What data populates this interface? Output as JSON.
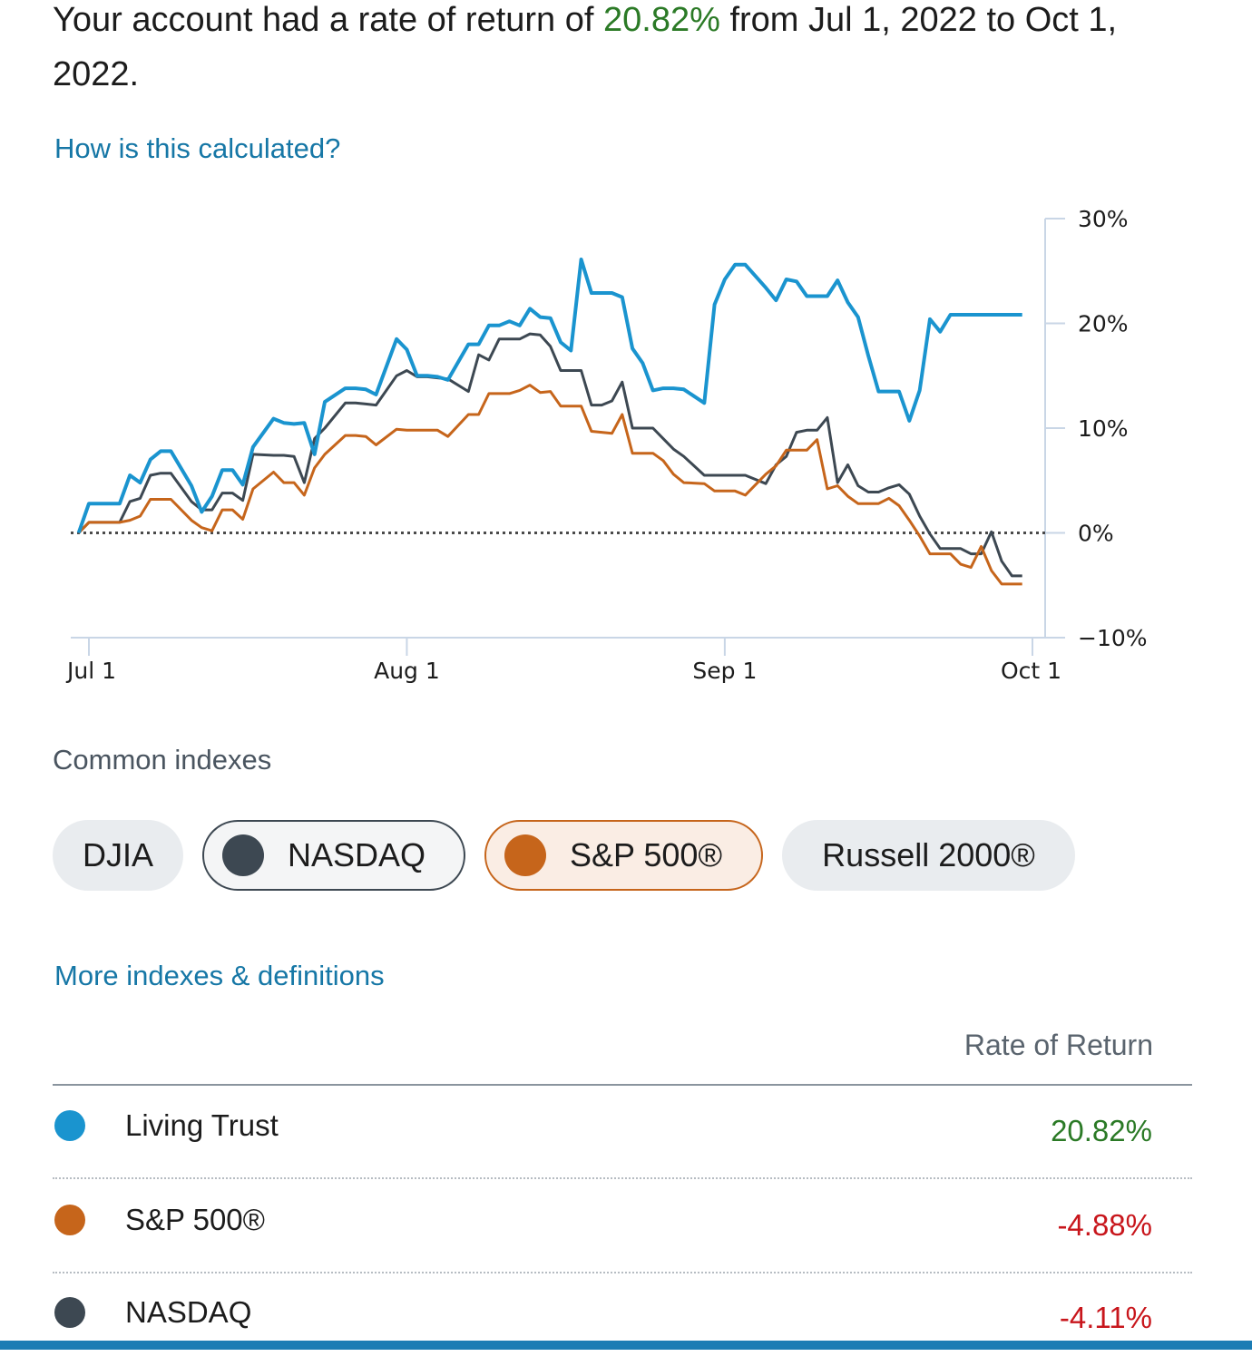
{
  "headline": {
    "prefix": "Your account had a rate of return of ",
    "rate": "20.82%",
    "suffix": " from Jul 1, 2022 to Oct 1, 2022."
  },
  "links": {
    "how_calculated": "How is this calculated?",
    "more_indexes": "More indexes & definitions"
  },
  "indexes": {
    "label": "Common indexes",
    "chips": [
      {
        "label": "DJIA",
        "selected": false
      },
      {
        "label": "NASDAQ",
        "selected": true,
        "color": "#3d4852"
      },
      {
        "label": "S&P 500®",
        "selected": true,
        "color": "#c6651b"
      },
      {
        "label": "Russell 2000®",
        "selected": false
      }
    ]
  },
  "table": {
    "header": "Rate of Return",
    "rows": [
      {
        "name": "Living Trust",
        "value": "20.82%",
        "color": "#1a94cf",
        "positive": true
      },
      {
        "name": "S&P 500®",
        "value": "-4.88%",
        "color": "#c6651b",
        "positive": false
      },
      {
        "name": "NASDAQ",
        "value": "-4.11%",
        "color": "#3d4852",
        "positive": false
      }
    ]
  },
  "chart_data": {
    "type": "line",
    "title": "",
    "xlabel": "",
    "ylabel": "",
    "ylim": [
      -10,
      30
    ],
    "xlim": [
      0,
      92
    ],
    "x_ticks": [
      {
        "label": "Jul 1",
        "day": 0
      },
      {
        "label": "Aug 1",
        "day": 31
      },
      {
        "label": "Sep 1",
        "day": 62
      },
      {
        "label": "Oct 1",
        "day": 92
      }
    ],
    "y_ticks": [
      {
        "label": "30%",
        "value": 30
      },
      {
        "label": "20%",
        "value": 20
      },
      {
        "label": "10%",
        "value": 10
      },
      {
        "label": "0%",
        "value": 0
      },
      {
        "label": "−10%",
        "value": -10
      }
    ],
    "zero_line": "dotted",
    "series": [
      {
        "name": "NASDAQ",
        "color": "#3d4852",
        "x": [
          -1,
          0,
          3,
          4,
          5,
          6,
          7,
          8,
          10,
          11,
          12,
          13,
          14,
          15,
          16,
          18,
          19,
          20,
          21,
          22,
          23,
          25,
          26,
          27,
          28,
          30,
          31,
          32,
          33,
          34,
          35,
          37,
          38,
          39,
          40,
          41,
          42,
          43,
          44,
          45,
          46,
          47,
          48,
          49,
          50,
          51,
          52,
          53,
          54,
          55,
          56,
          57,
          58,
          60,
          61,
          62,
          63,
          64,
          66,
          67,
          68,
          69,
          70,
          71,
          72,
          73,
          74,
          75,
          76,
          77,
          78,
          79,
          80,
          81,
          82,
          83,
          84,
          85,
          86,
          87,
          88,
          89,
          90,
          91
        ],
        "y": [
          0,
          1,
          1,
          3,
          3.3,
          5.5,
          5.7,
          5.7,
          3,
          2.2,
          2.2,
          3.8,
          3.8,
          3.1,
          7.5,
          7.4,
          7.4,
          7.3,
          4.8,
          9,
          10,
          12.4,
          12.4,
          12.3,
          12.2,
          15,
          15.5,
          14.9,
          14.9,
          14.8,
          14.7,
          13.5,
          17,
          16.5,
          18.5,
          18.5,
          18.5,
          19,
          18.9,
          17.8,
          15.5,
          15.5,
          15.5,
          12.2,
          12.2,
          12.6,
          14.4,
          10,
          10,
          10,
          9,
          8,
          7.3,
          5.5,
          5.5,
          5.5,
          5.5,
          5.5,
          4.7,
          6.5,
          7.3,
          9.6,
          9.8,
          9.8,
          11,
          4.8,
          6.5,
          4.5,
          3.9,
          3.9,
          4.3,
          4.6,
          3.7,
          1.6,
          -0.1,
          -1.5,
          -1.5,
          -1.5,
          -2,
          -2,
          0.1,
          -2.7,
          -4.1,
          -4.1
        ]
      },
      {
        "name": "S&P 500®",
        "color": "#c6651b",
        "x": [
          -1,
          0,
          3,
          4,
          5,
          6,
          7,
          8,
          10,
          11,
          12,
          13,
          14,
          15,
          16,
          18,
          19,
          20,
          21,
          22,
          23,
          25,
          26,
          27,
          28,
          30,
          31,
          32,
          33,
          34,
          35,
          37,
          38,
          39,
          40,
          41,
          42,
          43,
          44,
          45,
          46,
          47,
          48,
          49,
          50,
          51,
          52,
          53,
          54,
          55,
          56,
          57,
          58,
          60,
          61,
          62,
          63,
          64,
          66,
          67,
          68,
          69,
          70,
          71,
          72,
          73,
          74,
          75,
          76,
          77,
          78,
          79,
          80,
          81,
          82,
          83,
          84,
          85,
          86,
          87,
          88,
          89,
          90,
          91
        ],
        "y": [
          0,
          1,
          1,
          1.2,
          1.6,
          3.2,
          3.2,
          3.2,
          1.2,
          0.5,
          0.2,
          2.2,
          2.2,
          1.3,
          4.2,
          5.8,
          4.8,
          4.8,
          3.6,
          6.2,
          7.5,
          9.3,
          9.3,
          9.2,
          8.4,
          9.9,
          9.8,
          9.8,
          9.8,
          9.8,
          9.2,
          11.3,
          11.3,
          13.3,
          13.3,
          13.3,
          13.6,
          14.1,
          13.4,
          13.5,
          12.1,
          12.1,
          12.1,
          9.7,
          9.6,
          9.5,
          11.3,
          7.6,
          7.6,
          7.6,
          6.9,
          5.6,
          4.8,
          4.7,
          4,
          4,
          4,
          3.6,
          5.6,
          6.4,
          7.9,
          7.9,
          7.9,
          8.9,
          4.2,
          4.5,
          3.5,
          2.8,
          2.8,
          2.8,
          3.3,
          2.6,
          1.2,
          -0.3,
          -2,
          -2,
          -2,
          -3,
          -3.3,
          -1.3,
          -3.6,
          -4.88,
          -4.88,
          -4.88
        ]
      },
      {
        "name": "Living Trust",
        "color": "#1a94cf",
        "x": [
          -1,
          0,
          3,
          4,
          5,
          6,
          7,
          8,
          10,
          11,
          12,
          13,
          14,
          15,
          16,
          18,
          19,
          20,
          21,
          22,
          23,
          25,
          26,
          27,
          28,
          30,
          31,
          32,
          33,
          34,
          35,
          37,
          38,
          39,
          40,
          41,
          42,
          43,
          44,
          45,
          46,
          47,
          48,
          49,
          50,
          51,
          52,
          53,
          54,
          55,
          56,
          57,
          58,
          60,
          61,
          62,
          63,
          64,
          66,
          67,
          68,
          69,
          70,
          71,
          72,
          73,
          74,
          75,
          76,
          77,
          78,
          79,
          80,
          81,
          82,
          83,
          84,
          85,
          86,
          87,
          88,
          89,
          90,
          91
        ],
        "y": [
          0,
          2.8,
          2.8,
          5.5,
          4.8,
          7,
          7.8,
          7.8,
          4.5,
          2,
          3.5,
          6,
          6,
          4.6,
          8.2,
          10.9,
          10.5,
          10.4,
          10.5,
          7.5,
          12.5,
          13.8,
          13.8,
          13.7,
          13.2,
          18.5,
          17.5,
          15,
          15,
          14.9,
          14.6,
          18,
          18,
          19.8,
          19.8,
          20.2,
          19.8,
          21.4,
          20.6,
          20.5,
          18.2,
          17.4,
          26.1,
          22.9,
          22.9,
          22.9,
          22.5,
          17.6,
          16.2,
          13.6,
          13.8,
          13.8,
          13.7,
          12.4,
          21.8,
          24.2,
          25.6,
          25.6,
          23.4,
          22.2,
          24.2,
          24,
          22.6,
          22.6,
          22.6,
          24.1,
          22,
          20.6,
          16.9,
          13.5,
          13.5,
          13.5,
          10.7,
          13.6,
          20.4,
          19.2,
          20.82,
          20.82,
          20.82,
          20.82,
          20.82,
          20.82,
          20.82,
          20.82
        ]
      }
    ]
  }
}
